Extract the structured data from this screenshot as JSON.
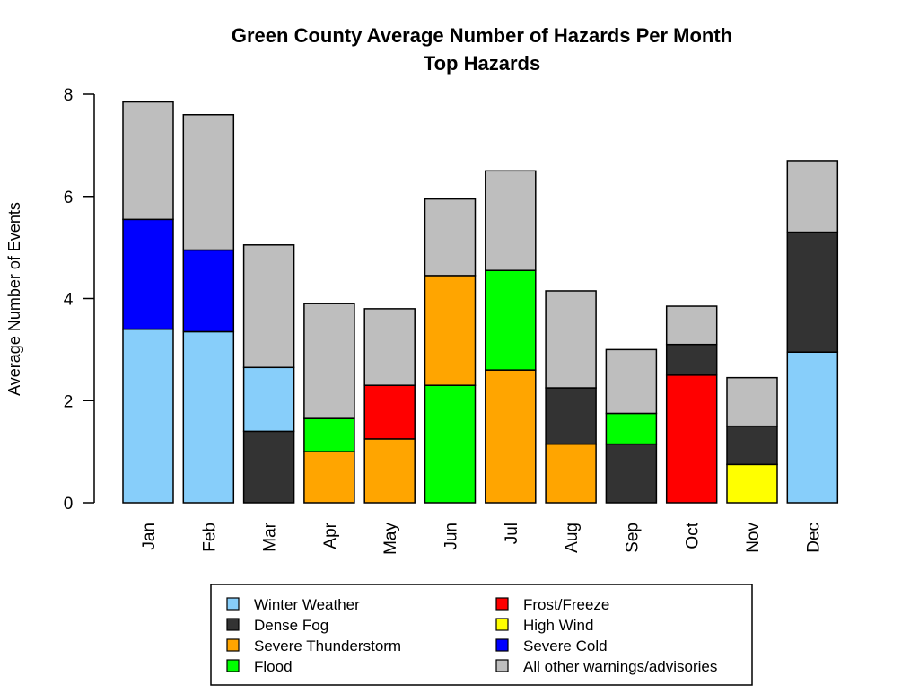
{
  "chart_data": {
    "type": "bar",
    "stacked": true,
    "title": "Green County Average Number of Hazards Per Month",
    "subtitle": "Top Hazards",
    "xlabel": "",
    "ylabel": "Average Number of Events",
    "ylim": [
      0,
      8
    ],
    "yticks": [
      0,
      2,
      4,
      6,
      8
    ],
    "grid": false,
    "legend_position": "bottom",
    "categories": [
      "Jan",
      "Feb",
      "Mar",
      "Apr",
      "May",
      "Jun",
      "Jul",
      "Aug",
      "Sep",
      "Oct",
      "Nov",
      "Dec"
    ],
    "legend": [
      {
        "name": "Winter Weather",
        "color": "#87CEFA"
      },
      {
        "name": "Dense Fog",
        "color": "#333333"
      },
      {
        "name": "Severe Thunderstorm",
        "color": "#FFA500"
      },
      {
        "name": "Flood",
        "color": "#00FF00"
      },
      {
        "name": "Frost/Freeze",
        "color": "#FF0000"
      },
      {
        "name": "High Wind",
        "color": "#FFFF00"
      },
      {
        "name": "Severe Cold",
        "color": "#0000FF"
      },
      {
        "name": "All other warnings/advisories",
        "color": "#BEBEBE"
      }
    ],
    "bars": [
      {
        "month": "Jan",
        "segments": [
          {
            "series": "Winter Weather",
            "value": 3.4
          },
          {
            "series": "Severe Cold",
            "value": 2.15
          },
          {
            "series": "All other warnings/advisories",
            "value": 2.3
          }
        ]
      },
      {
        "month": "Feb",
        "segments": [
          {
            "series": "Winter Weather",
            "value": 3.35
          },
          {
            "series": "Severe Cold",
            "value": 1.6
          },
          {
            "series": "All other warnings/advisories",
            "value": 2.65
          }
        ]
      },
      {
        "month": "Mar",
        "segments": [
          {
            "series": "Dense Fog",
            "value": 1.4
          },
          {
            "series": "Winter Weather",
            "value": 1.25
          },
          {
            "series": "All other warnings/advisories",
            "value": 2.4
          }
        ]
      },
      {
        "month": "Apr",
        "segments": [
          {
            "series": "Severe Thunderstorm",
            "value": 1.0
          },
          {
            "series": "Flood",
            "value": 0.65
          },
          {
            "series": "All other warnings/advisories",
            "value": 2.25
          }
        ]
      },
      {
        "month": "May",
        "segments": [
          {
            "series": "Severe Thunderstorm",
            "value": 1.25
          },
          {
            "series": "Frost/Freeze",
            "value": 1.05
          },
          {
            "series": "All other warnings/advisories",
            "value": 1.5
          }
        ]
      },
      {
        "month": "Jun",
        "segments": [
          {
            "series": "Flood",
            "value": 2.3
          },
          {
            "series": "Severe Thunderstorm",
            "value": 2.15
          },
          {
            "series": "All other warnings/advisories",
            "value": 1.5
          }
        ]
      },
      {
        "month": "Jul",
        "segments": [
          {
            "series": "Severe Thunderstorm",
            "value": 2.6
          },
          {
            "series": "Flood",
            "value": 1.95
          },
          {
            "series": "All other warnings/advisories",
            "value": 1.95
          }
        ]
      },
      {
        "month": "Aug",
        "segments": [
          {
            "series": "Severe Thunderstorm",
            "value": 1.15
          },
          {
            "series": "Dense Fog",
            "value": 1.1
          },
          {
            "series": "All other warnings/advisories",
            "value": 1.9
          }
        ]
      },
      {
        "month": "Sep",
        "segments": [
          {
            "series": "Dense Fog",
            "value": 1.15
          },
          {
            "series": "Flood",
            "value": 0.6
          },
          {
            "series": "All other warnings/advisories",
            "value": 1.25
          }
        ]
      },
      {
        "month": "Oct",
        "segments": [
          {
            "series": "Frost/Freeze",
            "value": 2.5
          },
          {
            "series": "Dense Fog",
            "value": 0.6
          },
          {
            "series": "All other warnings/advisories",
            "value": 0.75
          }
        ]
      },
      {
        "month": "Nov",
        "segments": [
          {
            "series": "High Wind",
            "value": 0.75
          },
          {
            "series": "Dense Fog",
            "value": 0.75
          },
          {
            "series": "All other warnings/advisories",
            "value": 0.95
          }
        ]
      },
      {
        "month": "Dec",
        "segments": [
          {
            "series": "Winter Weather",
            "value": 2.95
          },
          {
            "series": "Dense Fog",
            "value": 2.35
          },
          {
            "series": "All other warnings/advisories",
            "value": 1.4
          }
        ]
      }
    ]
  }
}
